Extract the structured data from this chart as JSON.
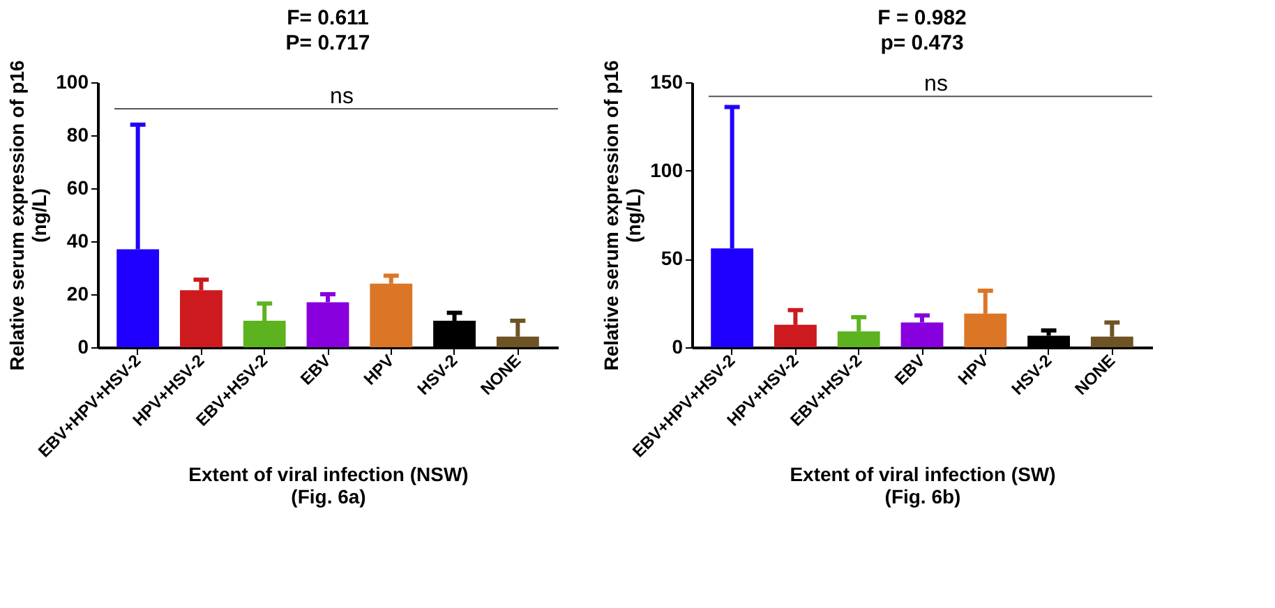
{
  "chart_data": [
    {
      "type": "bar",
      "title": "F= 0.611",
      "subtitle": "P= 0.717",
      "xlabel": "Extent of viral infection (NSW)\n(Fig. 6a)",
      "ylabel": "Relative serum expression of p16\n(ng/L)",
      "categories": [
        "EBV+HPV+HSV-2",
        "HPV+HSV-2",
        "EBV+HSV-2",
        "EBV",
        "HPV",
        "HSV-2",
        "NONE"
      ],
      "values": [
        37,
        21.5,
        10,
        17,
        24,
        10,
        4
      ],
      "colors": [
        "#1f00ff",
        "#cc1a1f",
        "#5cb31f",
        "#8800dd",
        "#dc7627",
        "#000000",
        "#6e5424"
      ],
      "errors": [
        [
          37,
          84
        ],
        [
          21.5,
          25.5
        ],
        [
          10,
          16.5
        ],
        [
          17,
          20
        ],
        [
          24,
          27
        ],
        [
          10,
          13
        ],
        [
          4,
          10
        ]
      ],
      "ylim": [
        0,
        100
      ],
      "yticks": [
        0,
        20,
        40,
        60,
        80,
        100
      ],
      "grid": false,
      "ref_lines": [
        {
          "axis": "y",
          "value": 90,
          "label": "ns",
          "color": "#555555"
        }
      ]
    },
    {
      "type": "bar",
      "title": "F = 0.982",
      "subtitle": "p= 0.473",
      "xlabel": "Extent of viral infection (SW)\n(Fig. 6b)",
      "ylabel": "Relative serum expression of p16\n(ng/L)",
      "categories": [
        "EBV+HPV+HSV-2",
        "HPV+HSV-2",
        "EBV+HSV-2",
        "EBV",
        "HPV",
        "HSV-2",
        "NONE"
      ],
      "values": [
        56,
        12.7,
        9,
        14,
        19,
        6.5,
        6
      ],
      "colors": [
        "#1f00ff",
        "#cc1a1f",
        "#5cb31f",
        "#8800dd",
        "#dc7627",
        "#000000",
        "#6e5424"
      ],
      "errors": [
        [
          56,
          136
        ],
        [
          12.7,
          21
        ],
        [
          9,
          17
        ],
        [
          14,
          18
        ],
        [
          19,
          32
        ],
        [
          6.5,
          9.5
        ],
        [
          6,
          14
        ]
      ],
      "ylim": [
        0,
        150
      ],
      "yticks": [
        0,
        50,
        100,
        150
      ],
      "grid": false,
      "ref_lines": [
        {
          "axis": "y",
          "value": 142,
          "label": "ns",
          "color": "#555555"
        }
      ]
    }
  ]
}
